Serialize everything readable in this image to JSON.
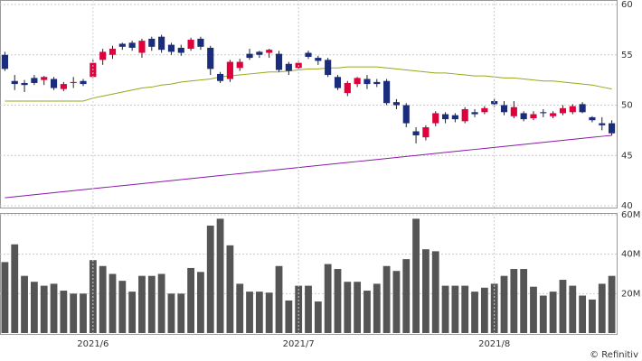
{
  "chart_data": [
    {
      "type": "candlestick",
      "up_color": "#e0003c",
      "down_color": "#1a2c7c",
      "open": [
        55,
        52.4,
        52.2,
        52.7,
        52.5,
        52.6,
        51.6,
        52.2,
        52.4,
        52.8,
        54.5,
        55,
        56.1,
        56.2,
        55.2,
        56.6,
        56.8,
        56,
        55.7,
        55.6,
        56.6,
        55.7,
        53.1,
        52.6,
        53.7,
        55.1,
        55.3,
        55.2,
        55.1,
        54.1,
        53.7,
        55.2,
        54.7,
        54.5,
        52.8,
        51.2,
        52.1,
        52.6,
        52.3,
        52.4,
        50.3,
        50,
        47.4,
        46.8,
        48.2,
        49.1,
        49,
        48.4,
        49.3,
        49.3,
        50.4,
        50,
        48.9,
        49.2,
        48.7,
        49.3,
        48.9,
        49.2,
        49.3,
        50.1,
        48.8,
        48.2,
        48.2
      ],
      "high": [
        55.3,
        53,
        52.5,
        53,
        52.9,
        52.8,
        52.3,
        52.8,
        52.6,
        54.5,
        55.6,
        55.9,
        56.2,
        56.4,
        56.6,
        56.8,
        57,
        56.2,
        56,
        56.7,
        56.8,
        55.9,
        53.3,
        54.5,
        54.6,
        55.6,
        55.4,
        55.6,
        55.4,
        54.3,
        54.4,
        55.4,
        54.9,
        54.7,
        53,
        52.4,
        52.8,
        53,
        52.6,
        52.6,
        50.6,
        50.2,
        47.8,
        48,
        49.4,
        49.3,
        49.2,
        49.8,
        49.6,
        49.9,
        50.7,
        50.4,
        50.4,
        49.4,
        49.4,
        49.6,
        49.4,
        50,
        50.1,
        50.3,
        48.9,
        48.8,
        48.5
      ],
      "low": [
        53.4,
        51.5,
        51.3,
        52,
        52,
        51.5,
        51.4,
        51.7,
        51.9,
        52.7,
        54,
        54.6,
        55.5,
        55.4,
        54.7,
        55.4,
        55.2,
        55,
        54.9,
        55.4,
        55.5,
        53,
        52.2,
        52.3,
        53.4,
        54.5,
        54.7,
        54.7,
        53.3,
        53,
        53.5,
        54.6,
        54,
        52.8,
        51.5,
        50.9,
        51.8,
        51.6,
        51.8,
        50,
        49.6,
        47.8,
        46.2,
        46.5,
        47.9,
        48.2,
        48.3,
        48.2,
        48.8,
        49.1,
        49.8,
        49,
        48.7,
        48.4,
        48.5,
        48.8,
        48.7,
        49,
        49.1,
        49.2,
        48.3,
        47.5,
        47
      ],
      "close": [
        53.6,
        52.1,
        52.0,
        52.2,
        52.8,
        51.7,
        52.1,
        52.3,
        52.1,
        54.2,
        55.3,
        55.6,
        55.8,
        55.7,
        56.4,
        55.8,
        55.5,
        55.3,
        55.2,
        56.5,
        55.8,
        53.6,
        52.4,
        54.3,
        54.3,
        54.7,
        55.0,
        55.5,
        53.5,
        53.4,
        54.2,
        54.8,
        54.4,
        53.0,
        51.7,
        52.2,
        52.7,
        52.1,
        52.1,
        50.2,
        50.0,
        48.2,
        47.0,
        47.8,
        49.2,
        48.6,
        48.6,
        49.6,
        49.1,
        49.7,
        50.1,
        49.3,
        49.8,
        48.6,
        49.1,
        49.2,
        49.2,
        49.7,
        49.9,
        49.3,
        48.5,
        48.0,
        47.2
      ],
      "series": [
        {
          "color": "#9aa61c",
          "values": [
            50.4,
            50.4,
            50.4,
            50.4,
            50.4,
            50.4,
            50.4,
            50.4,
            50.4,
            50.7,
            50.9,
            51.1,
            51.3,
            51.5,
            51.7,
            51.8,
            52.0,
            52.1,
            52.3,
            52.4,
            52.5,
            52.6,
            52.8,
            52.9,
            53.0,
            53.1,
            53.2,
            53.3,
            53.3,
            53.4,
            53.5,
            53.6,
            53.6,
            53.7,
            53.7,
            53.8,
            53.8,
            53.8,
            53.8,
            53.7,
            53.6,
            53.5,
            53.4,
            53.3,
            53.2,
            53.2,
            53.1,
            53.0,
            52.9,
            52.9,
            52.8,
            52.7,
            52.7,
            52.6,
            52.5,
            52.4,
            52.4,
            52.3,
            52.2,
            52.1,
            52.0,
            51.8,
            51.6
          ]
        },
        {
          "color": "#8a1aa6",
          "values": [
            40.8,
            40.9,
            41.0,
            41.1,
            41.2,
            41.3,
            41.4,
            41.5,
            41.6,
            41.7,
            41.8,
            41.9,
            42.0,
            42.1,
            42.2,
            42.3,
            42.4,
            42.5,
            42.6,
            42.7,
            42.8,
            42.9,
            43.0,
            43.1,
            43.2,
            43.3,
            43.4,
            43.5,
            43.6,
            43.7,
            43.8,
            43.9,
            44.0,
            44.1,
            44.2,
            44.3,
            44.4,
            44.5,
            44.6,
            44.7,
            44.8,
            44.9,
            45.0,
            45.1,
            45.2,
            45.3,
            45.4,
            45.5,
            45.6,
            45.7,
            45.8,
            45.9,
            46.0,
            46.1,
            46.2,
            46.3,
            46.4,
            46.5,
            46.6,
            46.7,
            46.8,
            46.9,
            47.0
          ]
        }
      ],
      "ylim": [
        40,
        60
      ],
      "yticks": [
        40,
        45,
        50,
        55,
        60
      ],
      "grid": true
    },
    {
      "type": "bar",
      "color": "#555555",
      "categories": [
        null,
        null,
        null,
        null,
        null,
        null,
        null,
        null,
        null,
        "2021/6",
        null,
        null,
        null,
        null,
        null,
        null,
        null,
        null,
        null,
        null,
        null,
        null,
        null,
        null,
        null,
        null,
        null,
        null,
        null,
        null,
        "2021/7",
        null,
        null,
        null,
        null,
        null,
        null,
        null,
        null,
        null,
        null,
        null,
        null,
        null,
        null,
        null,
        null,
        null,
        null,
        null,
        "2021/8",
        null,
        null,
        null,
        null,
        null,
        null,
        null,
        null,
        null,
        null,
        null,
        null
      ],
      "values": [
        36,
        45,
        29,
        26,
        24,
        25,
        21.5,
        20,
        20,
        37,
        34,
        30,
        26.5,
        21,
        29,
        29,
        30,
        20,
        20,
        33,
        31,
        54.5,
        58,
        44.5,
        25,
        21,
        21,
        20.5,
        34,
        16.5,
        24,
        24,
        16,
        35,
        32.5,
        26,
        26,
        21.5,
        25,
        34,
        31.5,
        37.5,
        58,
        42.5,
        41.5,
        24,
        24,
        24,
        21,
        23,
        25,
        29,
        32.5,
        32.5,
        23.5,
        19,
        21,
        27,
        24,
        19,
        17,
        25,
        29
      ],
      "ylim": [
        0,
        60
      ],
      "yticks": [
        {
          "value": 20,
          "label": "20M"
        },
        {
          "value": 40,
          "label": "40M"
        },
        {
          "value": 60,
          "label": "60M"
        }
      ],
      "grid": true
    }
  ],
  "credit": "© Refinitiv"
}
